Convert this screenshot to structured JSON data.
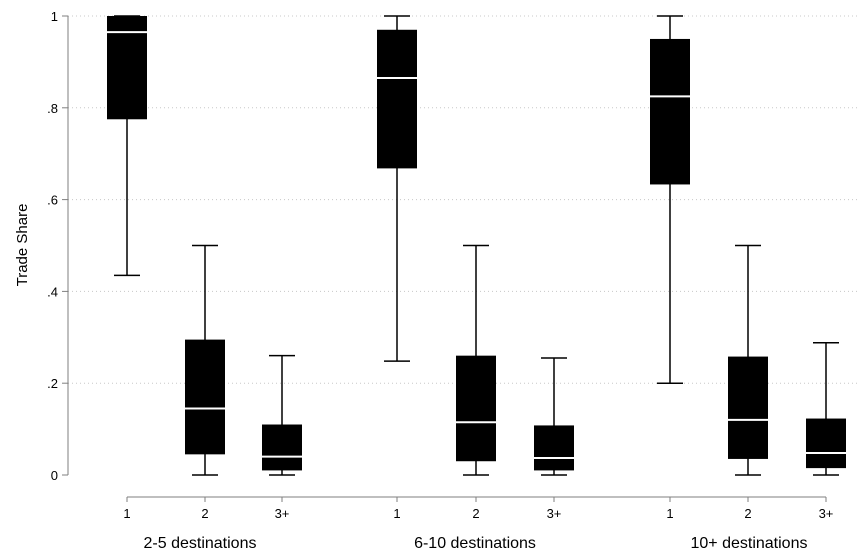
{
  "chart_data": {
    "type": "box",
    "title": "",
    "ylabel": "Trade Share",
    "ylim": [
      0,
      1
    ],
    "yticks": [
      0,
      0.2,
      0.4,
      0.6,
      0.8,
      1
    ],
    "ytick_labels": [
      "0",
      ".2",
      ".4",
      ".6",
      ".8",
      "1"
    ],
    "grid": true,
    "box_color": "#000000",
    "median_color": "#ffffff",
    "groups": [
      {
        "label": "2-5 destinations",
        "boxes": [
          {
            "category": "1",
            "whisker_low": 0.435,
            "q1": 0.775,
            "median": 0.965,
            "q3": 1.0,
            "whisker_high": 1.0
          },
          {
            "category": "2",
            "whisker_low": 0.0,
            "q1": 0.045,
            "median": 0.145,
            "q3": 0.295,
            "whisker_high": 0.5
          },
          {
            "category": "3+",
            "whisker_low": 0.0,
            "q1": 0.01,
            "median": 0.04,
            "q3": 0.11,
            "whisker_high": 0.26
          }
        ]
      },
      {
        "label": "6-10 destinations",
        "boxes": [
          {
            "category": "1",
            "whisker_low": 0.248,
            "q1": 0.668,
            "median": 0.865,
            "q3": 0.97,
            "whisker_high": 1.0
          },
          {
            "category": "2",
            "whisker_low": 0.0,
            "q1": 0.03,
            "median": 0.115,
            "q3": 0.26,
            "whisker_high": 0.5
          },
          {
            "category": "3+",
            "whisker_low": 0.0,
            "q1": 0.01,
            "median": 0.037,
            "q3": 0.108,
            "whisker_high": 0.255
          }
        ]
      },
      {
        "label": "10+ destinations",
        "boxes": [
          {
            "category": "1",
            "whisker_low": 0.2,
            "q1": 0.633,
            "median": 0.825,
            "q3": 0.95,
            "whisker_high": 1.0
          },
          {
            "category": "2",
            "whisker_low": 0.0,
            "q1": 0.035,
            "median": 0.12,
            "q3": 0.258,
            "whisker_high": 0.5
          },
          {
            "category": "3+",
            "whisker_low": 0.0,
            "q1": 0.015,
            "median": 0.048,
            "q3": 0.123,
            "whisker_high": 0.288
          }
        ]
      }
    ]
  }
}
